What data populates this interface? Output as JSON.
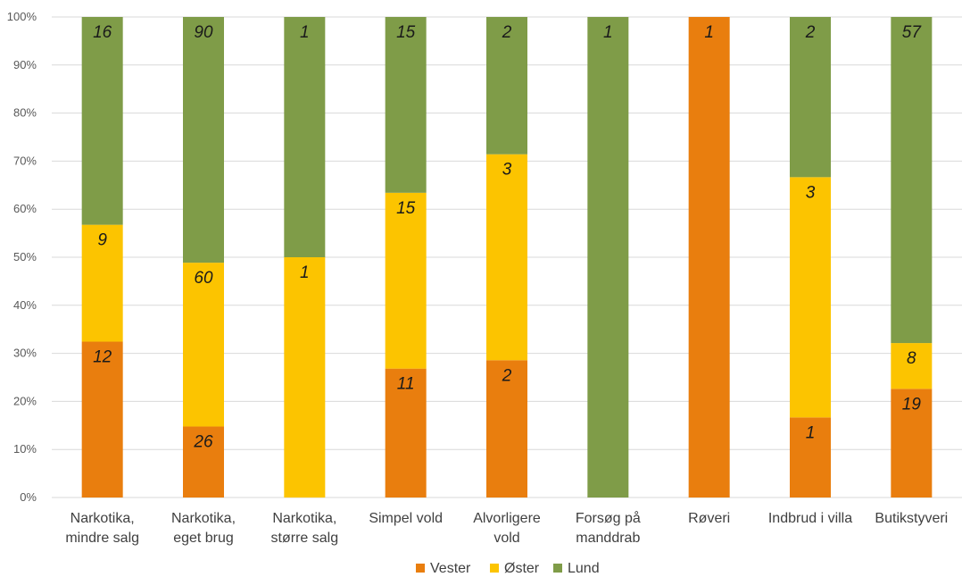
{
  "chart_data": {
    "type": "bar",
    "stacked": "percent",
    "title": "",
    "xlabel": "",
    "ylabel": "",
    "ylim": [
      0,
      100
    ],
    "y_ticks": [
      "0%",
      "10%",
      "20%",
      "30%",
      "40%",
      "50%",
      "60%",
      "70%",
      "80%",
      "90%",
      "100%"
    ],
    "grid": true,
    "legend_position": "bottom",
    "categories": [
      [
        "Narkotika,",
        "mindre salg"
      ],
      [
        "Narkotika,",
        "eget brug"
      ],
      [
        "Narkotika,",
        "større salg"
      ],
      [
        "Simpel vold"
      ],
      [
        "Alvorligere",
        "vold"
      ],
      [
        "Forsøg på",
        "manddrab"
      ],
      [
        "Røveri"
      ],
      [
        "Indbrud i villa"
      ],
      [
        "Butikstyveri"
      ]
    ],
    "series": [
      {
        "name": "Vester",
        "color": "#e97e0e",
        "values": [
          12,
          26,
          0,
          11,
          2,
          0,
          1,
          1,
          19
        ]
      },
      {
        "name": "Øster",
        "color": "#fcc400",
        "values": [
          9,
          60,
          1,
          15,
          3,
          0,
          0,
          3,
          8
        ]
      },
      {
        "name": "Lund",
        "color": "#7f9c48",
        "values": [
          16,
          90,
          1,
          15,
          2,
          1,
          0,
          2,
          57
        ]
      }
    ]
  }
}
